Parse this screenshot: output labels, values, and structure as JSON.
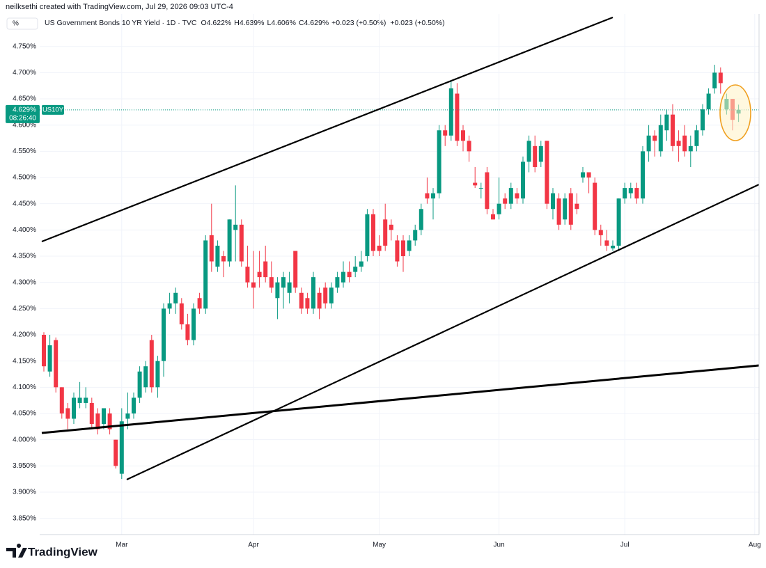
{
  "header": {
    "credit": "neilksethi created with TradingView.com, Jul 29, 2026 09:03 UTC-4",
    "unit_button": "%",
    "brand": "TradingView"
  },
  "chart_data": {
    "type": "candlestick",
    "title": "US Government Bonds 10 YR Yield · 1D · TVC",
    "ohlc_legend": [
      {
        "key": "O",
        "value": "4.622%"
      },
      {
        "key": "H",
        "value": "4.639%"
      },
      {
        "key": "L",
        "value": "4.606%"
      },
      {
        "key": "C",
        "value": "4.629%"
      }
    ],
    "change": "+0.023 (+0.50%)",
    "symbol": "US10Y",
    "countdown": "08:26:40",
    "last_price": {
      "value": 4.629,
      "label": "4.629%"
    },
    "up_color": "#089981",
    "down_color": "#f23645",
    "ylim": [
      3.819,
      4.812
    ],
    "yticks": [
      {
        "value": 3.85,
        "label": "3.850%"
      },
      {
        "value": 3.9,
        "label": "3.900%"
      },
      {
        "value": 3.95,
        "label": "3.950%"
      },
      {
        "value": 4.0,
        "label": "4.000%"
      },
      {
        "value": 4.05,
        "label": "4.050%"
      },
      {
        "value": 4.1,
        "label": "4.100%"
      },
      {
        "value": 4.15,
        "label": "4.150%"
      },
      {
        "value": 4.2,
        "label": "4.200%"
      },
      {
        "value": 4.25,
        "label": "4.250%"
      },
      {
        "value": 4.3,
        "label": "4.300%"
      },
      {
        "value": 4.35,
        "label": "4.350%"
      },
      {
        "value": 4.4,
        "label": "4.400%"
      },
      {
        "value": 4.45,
        "label": "4.450%"
      },
      {
        "value": 4.5,
        "label": "4.500%"
      },
      {
        "value": 4.55,
        "label": "4.550%"
      },
      {
        "value": 4.6,
        "label": "4.600%"
      },
      {
        "value": 4.65,
        "label": "4.650%"
      },
      {
        "value": 4.7,
        "label": "4.700%"
      },
      {
        "value": 4.75,
        "label": "4.750%"
      }
    ],
    "xticks": [
      {
        "value": 13,
        "label": "Mar"
      },
      {
        "value": 35,
        "label": "Apr"
      },
      {
        "value": 56,
        "label": "May"
      },
      {
        "value": 76,
        "label": "Jun"
      },
      {
        "value": 97,
        "label": "Jul"
      },
      {
        "value": 118.7,
        "label": "Aug"
      }
    ],
    "grid": true,
    "open": [
      4.2,
      4.13,
      4.19,
      4.1,
      4.06,
      4.04,
      4.07,
      4.07,
      4.07,
      4.05,
      4.03,
      4.05,
      4.0,
      3.935,
      4.04,
      4.05,
      4.08,
      4.1,
      4.19,
      4.1,
      4.15,
      4.25,
      4.26,
      4.26,
      4.22,
      4.19,
      4.27,
      4.25,
      4.39,
      4.33,
      4.35,
      4.34,
      4.4,
      4.41,
      4.33,
      4.3,
      4.32,
      4.34,
      4.31,
      4.27,
      4.29,
      4.28,
      4.36,
      4.28,
      4.27,
      4.25,
      4.28,
      4.29,
      4.26,
      4.29,
      4.3,
      4.32,
      4.32,
      4.33,
      4.35,
      4.43,
      4.37,
      4.42,
      4.41,
      4.38,
      4.38,
      4.36,
      4.38,
      4.4,
      4.47,
      4.46,
      4.47,
      4.59,
      4.58,
      4.66,
      4.59,
      4.57,
      4.49,
      4.48,
      4.51,
      4.43,
      4.43,
      4.46,
      4.45,
      4.47,
      4.46,
      4.53,
      4.56,
      4.53,
      4.57,
      4.44,
      4.46,
      4.42,
      4.47,
      4.45,
      4.5,
      4.51,
      4.49,
      4.4,
      4.38,
      4.365,
      4.37,
      4.46,
      4.47,
      4.48,
      4.46,
      4.55,
      4.58,
      4.55,
      4.59,
      4.62,
      4.57,
      4.58,
      4.55,
      4.56,
      4.59,
      4.63,
      4.67,
      4.7,
      4.63,
      4.65,
      4.622
    ],
    "high": [
      4.205,
      4.2,
      4.195,
      4.1,
      4.07,
      4.09,
      4.11,
      4.1,
      4.08,
      4.06,
      4.06,
      4.06,
      4.0,
      4.06,
      4.09,
      4.09,
      4.14,
      4.15,
      4.2,
      4.16,
      4.26,
      4.28,
      4.29,
      4.27,
      4.24,
      4.26,
      4.28,
      4.39,
      4.45,
      4.38,
      4.36,
      4.42,
      4.485,
      4.42,
      4.37,
      4.36,
      4.36,
      4.37,
      4.34,
      4.31,
      4.32,
      4.32,
      4.36,
      4.29,
      4.28,
      4.32,
      4.29,
      4.3,
      4.3,
      4.32,
      4.34,
      4.34,
      4.35,
      4.36,
      4.44,
      4.44,
      4.39,
      4.45,
      4.42,
      4.39,
      4.39,
      4.39,
      4.41,
      4.45,
      4.5,
      4.48,
      4.6,
      4.6,
      4.685,
      4.68,
      4.6,
      4.58,
      4.52,
      4.49,
      4.52,
      4.44,
      4.5,
      4.47,
      4.49,
      4.48,
      4.54,
      4.58,
      4.58,
      4.57,
      4.57,
      4.48,
      4.47,
      4.47,
      4.48,
      4.47,
      4.52,
      4.51,
      4.5,
      4.41,
      4.4,
      4.38,
      4.46,
      4.49,
      4.49,
      4.49,
      4.56,
      4.6,
      4.59,
      4.62,
      4.63,
      4.64,
      4.59,
      4.6,
      4.58,
      4.6,
      4.64,
      4.67,
      4.715,
      4.71,
      4.66,
      4.65,
      4.639
    ],
    "low": [
      4.13,
      4.12,
      4.09,
      4.04,
      4.02,
      4.03,
      4.06,
      4.06,
      4.02,
      4.01,
      4.02,
      4.01,
      3.945,
      3.925,
      4.02,
      4.04,
      4.07,
      4.09,
      4.09,
      4.08,
      4.12,
      4.24,
      4.24,
      4.21,
      4.18,
      4.18,
      4.24,
      4.24,
      4.32,
      4.32,
      4.31,
      4.33,
      4.34,
      4.33,
      4.29,
      4.25,
      4.29,
      4.3,
      4.28,
      4.23,
      4.25,
      4.26,
      4.28,
      4.24,
      4.24,
      4.24,
      4.23,
      4.25,
      4.25,
      4.28,
      4.29,
      4.3,
      4.31,
      4.32,
      4.34,
      4.35,
      4.35,
      4.36,
      4.38,
      4.33,
      4.32,
      4.35,
      4.37,
      4.39,
      4.45,
      4.42,
      4.46,
      4.56,
      4.57,
      4.56,
      4.55,
      4.53,
      4.48,
      4.46,
      4.43,
      4.42,
      4.42,
      4.44,
      4.44,
      4.45,
      4.45,
      4.51,
      4.51,
      4.52,
      4.44,
      4.42,
      4.4,
      4.41,
      4.4,
      4.43,
      4.49,
      4.47,
      4.39,
      4.37,
      4.36,
      4.36,
      4.36,
      4.45,
      4.46,
      4.45,
      4.45,
      4.53,
      4.54,
      4.54,
      4.57,
      4.55,
      4.53,
      4.54,
      4.52,
      4.55,
      4.58,
      4.62,
      4.66,
      4.66,
      4.62,
      4.59,
      4.606
    ],
    "close": [
      4.14,
      4.18,
      4.1,
      4.05,
      4.04,
      4.08,
      4.08,
      4.08,
      4.03,
      4.02,
      4.06,
      4.02,
      3.95,
      4.035,
      4.05,
      4.08,
      4.13,
      4.14,
      4.1,
      4.15,
      4.25,
      4.26,
      4.28,
      4.22,
      4.19,
      4.25,
      4.25,
      4.38,
      4.34,
      4.37,
      4.34,
      4.42,
      4.41,
      4.34,
      4.3,
      4.29,
      4.31,
      4.31,
      4.29,
      4.3,
      4.31,
      4.3,
      4.29,
      4.25,
      4.25,
      4.31,
      4.25,
      4.26,
      4.29,
      4.31,
      4.32,
      4.31,
      4.33,
      4.34,
      4.43,
      4.36,
      4.36,
      4.37,
      4.4,
      4.34,
      4.35,
      4.38,
      4.4,
      4.44,
      4.46,
      4.47,
      4.59,
      4.58,
      4.67,
      4.57,
      4.57,
      4.55,
      4.485,
      4.48,
      4.44,
      4.42,
      4.45,
      4.45,
      4.48,
      4.46,
      4.53,
      4.57,
      4.52,
      4.56,
      4.45,
      4.47,
      4.41,
      4.46,
      4.41,
      4.44,
      4.51,
      4.5,
      4.4,
      4.39,
      4.37,
      4.37,
      4.46,
      4.48,
      4.48,
      4.46,
      4.55,
      4.58,
      4.57,
      4.6,
      4.62,
      4.56,
      4.56,
      4.55,
      4.56,
      4.59,
      4.63,
      4.66,
      4.7,
      4.68,
      4.65,
      4.61,
      4.629
    ]
  }
}
